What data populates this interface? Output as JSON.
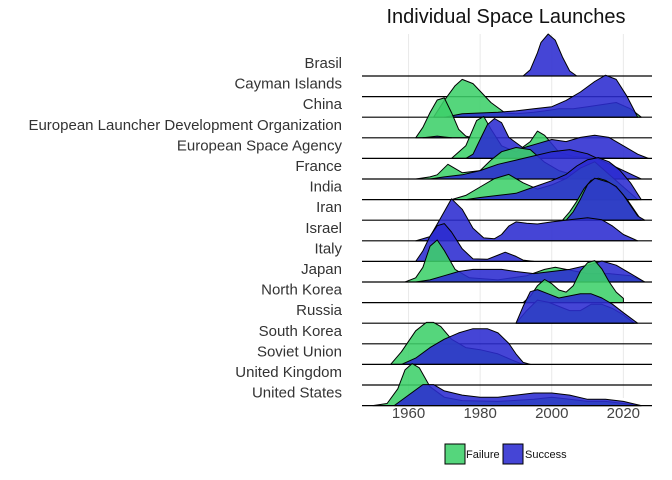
{
  "chart_data": {
    "type": "area",
    "subtype": "ridgeline",
    "title": "Individual Space Launches",
    "xlabel": "",
    "ylabel": "",
    "xlim": [
      1947,
      2028
    ],
    "x_ticks": [
      1960,
      1980,
      2000,
      2020
    ],
    "grid": true,
    "legend": "bottom",
    "categories": [
      "Brasil",
      "Cayman Islands",
      "China",
      "European Launcher Development Organization",
      "European Space Agency",
      "France",
      "India",
      "Iran",
      "Israel",
      "Italy",
      "Japan",
      "North Korea",
      "Russia",
      "South Korea",
      "Soviet Union",
      "United Kingdom",
      "United States"
    ],
    "series": [
      {
        "name": "Failure",
        "color": "#3dd06a",
        "ridges": [
          {
            "category": "China",
            "x": [
              1967,
              1970,
              1973,
              1975,
              1978,
              1983,
              1987,
              1990,
              1995,
              1998,
              2002,
              2006,
              2010,
              2014,
              2018,
              2022,
              2025
            ],
            "y": [
              0.0,
              0.4,
              0.75,
              0.9,
              0.8,
              0.35,
              0.1,
              0.08,
              0.12,
              0.15,
              0.2,
              0.2,
              0.25,
              0.3,
              0.35,
              0.2,
              0.0
            ]
          },
          {
            "category": "European Launcher Development Organization",
            "x": [
              1962,
              1964,
              1966,
              1968,
              1970,
              1972,
              1974,
              1976,
              1978
            ],
            "y": [
              0.0,
              0.25,
              0.6,
              0.9,
              0.95,
              0.6,
              0.2,
              0.04,
              0.0
            ]
          },
          {
            "category": "European Space Agency",
            "x": [
              1972,
              1976,
              1979,
              1981,
              1983,
              1986,
              1990,
              1994,
              1996,
              1998,
              2002,
              2006,
              2010,
              2014,
              2018,
              2022
            ],
            "y": [
              0.0,
              0.3,
              0.9,
              1.0,
              0.7,
              0.3,
              0.15,
              0.4,
              0.65,
              0.55,
              0.15,
              0.05,
              0.02,
              0.02,
              0.01,
              0.0
            ]
          },
          {
            "category": "France",
            "x": [
              1962,
              1966,
              1968,
              1971,
              1975,
              1980,
              1983,
              1986,
              1990,
              1994,
              1998,
              2002,
              2008,
              2014,
              2018,
              2022
            ],
            "y": [
              0.0,
              0.05,
              0.1,
              0.35,
              0.15,
              0.2,
              0.45,
              0.65,
              0.75,
              0.7,
              0.4,
              0.2,
              0.05,
              0.02,
              0.01,
              0.0
            ]
          },
          {
            "category": "India",
            "x": [
              1972,
              1976,
              1980,
              1984,
              1988,
              1992,
              1996,
              2000,
              2004,
              2008,
              2012,
              2016,
              2020,
              2024
            ],
            "y": [
              0.0,
              0.1,
              0.3,
              0.5,
              0.6,
              0.4,
              0.25,
              0.35,
              0.5,
              0.75,
              0.9,
              0.6,
              0.3,
              0.0
            ]
          },
          {
            "category": "Iran",
            "x": [
              2003,
              2005,
              2007,
              2009,
              2011,
              2013,
              2015,
              2017,
              2019,
              2021,
              2023,
              2025
            ],
            "y": [
              0.0,
              0.2,
              0.45,
              0.75,
              0.95,
              1.0,
              0.95,
              0.85,
              0.7,
              0.5,
              0.25,
              0.0
            ]
          },
          {
            "category": "Japan",
            "x": [
              1959,
              1962,
              1964,
              1966,
              1968,
              1970,
              1973,
              1977,
              1985,
              1993,
              1998,
              2001,
              2004,
              2010,
              2016,
              2022,
              2026
            ],
            "y": [
              0.0,
              0.1,
              0.35,
              0.85,
              1.0,
              0.75,
              0.3,
              0.1,
              0.05,
              0.15,
              0.3,
              0.35,
              0.3,
              0.2,
              0.2,
              0.15,
              0.0
            ]
          },
          {
            "category": "North Korea",
            "x": [
              1992,
              1994,
              1996,
              1998,
              2000,
              2002,
              2004,
              2006,
              2008,
              2010,
              2012,
              2014,
              2016,
              2018,
              2020
            ],
            "y": [
              0.0,
              0.15,
              0.4,
              0.55,
              0.45,
              0.3,
              0.25,
              0.4,
              0.75,
              0.95,
              1.0,
              0.8,
              0.5,
              0.25,
              0.1
            ]
          },
          {
            "category": "Russia",
            "x": [
              1990,
              1993,
              1996,
              1999,
              2002,
              2005,
              2008,
              2011,
              2014,
              2017,
              2020,
              2023
            ],
            "y": [
              0.0,
              0.3,
              0.55,
              0.5,
              0.4,
              0.3,
              0.3,
              0.45,
              0.45,
              0.35,
              0.2,
              0.0
            ]
          },
          {
            "category": "Soviet Union",
            "x": [
              1955,
              1958,
              1962,
              1965,
              1967,
              1969,
              1972,
              1976,
              1980,
              1985,
              1989,
              1992
            ],
            "y": [
              0.0,
              0.3,
              0.8,
              1.0,
              1.0,
              0.9,
              0.6,
              0.4,
              0.35,
              0.25,
              0.1,
              0.0
            ]
          },
          {
            "category": "United States",
            "x": [
              1950,
              1954,
              1957,
              1959,
              1961,
              1963,
              1966,
              1970,
              1975,
              1985,
              1995,
              2000,
              2005,
              2010,
              2015,
              2020,
              2025
            ],
            "y": [
              0.0,
              0.05,
              0.4,
              0.85,
              1.0,
              0.9,
              0.45,
              0.2,
              0.12,
              0.1,
              0.15,
              0.2,
              0.15,
              0.1,
              0.1,
              0.05,
              0.0
            ]
          }
        ]
      },
      {
        "name": "Success",
        "color": "#2b2bd0",
        "ridges": [
          {
            "category": "Brasil",
            "x": [
              1992,
              1994,
              1996,
              1997,
              1999,
              2001,
              2003,
              2005,
              2007
            ],
            "y": [
              0.0,
              0.15,
              0.55,
              0.8,
              1.0,
              0.85,
              0.45,
              0.12,
              0.0
            ]
          },
          {
            "category": "China",
            "x": [
              1970,
              1975,
              1980,
              1985,
              1990,
              1995,
              2000,
              2004,
              2008,
              2012,
              2015,
              2018,
              2021,
              2024
            ],
            "y": [
              0.0,
              0.08,
              0.1,
              0.12,
              0.15,
              0.2,
              0.25,
              0.4,
              0.6,
              0.85,
              1.0,
              0.9,
              0.5,
              0.0
            ]
          },
          {
            "category": "European Launcher Development Organization",
            "x": [
              1964,
              1966,
              1968,
              1970,
              1972
            ],
            "y": [
              0.0,
              0.02,
              0.04,
              0.02,
              0.0
            ]
          },
          {
            "category": "European Space Agency",
            "x": [
              1976,
              1978,
              1980,
              1982,
              1984,
              1986,
              1988,
              1992,
              1996,
              2000,
              2004,
              2008,
              2012,
              2016,
              2020,
              2024,
              2027
            ],
            "y": [
              0.0,
              0.1,
              0.45,
              0.8,
              0.95,
              0.85,
              0.5,
              0.25,
              0.35,
              0.45,
              0.4,
              0.5,
              0.55,
              0.5,
              0.3,
              0.1,
              0.0
            ]
          },
          {
            "category": "France",
            "x": [
              1966,
              1970,
              1975,
              1980,
              1985,
              1990,
              1995,
              2000,
              2005,
              2010,
              2015,
              2020,
              2025
            ],
            "y": [
              0.0,
              0.05,
              0.1,
              0.2,
              0.35,
              0.45,
              0.55,
              0.65,
              0.7,
              0.6,
              0.4,
              0.2,
              0.0
            ]
          },
          {
            "category": "India",
            "x": [
              1976,
              1980,
              1985,
              1990,
              1995,
              2000,
              2004,
              2007,
              2010,
              2013,
              2016,
              2019,
              2022,
              2025
            ],
            "y": [
              0.0,
              0.05,
              0.1,
              0.15,
              0.3,
              0.45,
              0.6,
              0.8,
              0.95,
              1.0,
              0.9,
              0.7,
              0.4,
              0.0
            ]
          },
          {
            "category": "Iran",
            "x": [
              2004,
              2006,
              2008,
              2010,
              2012,
              2014,
              2016,
              2018,
              2020,
              2022,
              2024,
              2026
            ],
            "y": [
              0.0,
              0.2,
              0.5,
              0.85,
              1.0,
              0.95,
              0.9,
              0.8,
              0.6,
              0.35,
              0.1,
              0.0
            ]
          },
          {
            "category": "Israel",
            "x": [
              1962,
              1966,
              1969,
              1972,
              1975,
              1978,
              1981,
              1984,
              1986,
              1988,
              1990,
              1993,
              1996,
              2000,
              2005,
              2010,
              2014,
              2017,
              2020,
              2024
            ],
            "y": [
              0.0,
              0.1,
              0.55,
              1.0,
              0.75,
              0.3,
              0.07,
              0.05,
              0.15,
              0.35,
              0.45,
              0.42,
              0.4,
              0.45,
              0.5,
              0.55,
              0.5,
              0.35,
              0.15,
              0.0
            ]
          },
          {
            "category": "Italy",
            "x": [
              1962,
              1964,
              1966,
              1968,
              1970,
              1972,
              1975,
              1978,
              1982,
              1985,
              1987,
              1990,
              1992,
              1995
            ],
            "y": [
              0.0,
              0.25,
              0.6,
              0.85,
              0.9,
              0.7,
              0.3,
              0.06,
              0.05,
              0.15,
              0.22,
              0.12,
              0.03,
              0.0
            ]
          },
          {
            "category": "Japan",
            "x": [
              1962,
              1966,
              1970,
              1974,
              1978,
              1982,
              1986,
              1990,
              1995,
              2000,
              2005,
              2010,
              2014,
              2018,
              2022,
              2026
            ],
            "y": [
              0.0,
              0.05,
              0.15,
              0.25,
              0.3,
              0.3,
              0.3,
              0.25,
              0.2,
              0.25,
              0.3,
              0.4,
              0.5,
              0.4,
              0.2,
              0.0
            ]
          },
          {
            "category": "Russia",
            "x": [
              1990,
              1992,
              1994,
              1996,
              1999,
              2002,
              2005,
              2008,
              2011,
              2014,
              2017,
              2020,
              2024
            ],
            "y": [
              0.0,
              0.4,
              0.75,
              0.8,
              0.7,
              0.6,
              0.65,
              0.7,
              0.7,
              0.6,
              0.45,
              0.25,
              0.0
            ]
          },
          {
            "category": "Soviet Union",
            "x": [
              1958,
              1962,
              1966,
              1970,
              1974,
              1978,
              1982,
              1985,
              1988,
              1990,
              1992,
              1994
            ],
            "y": [
              0.0,
              0.15,
              0.4,
              0.6,
              0.75,
              0.85,
              0.85,
              0.75,
              0.5,
              0.25,
              0.05,
              0.0
            ]
          },
          {
            "category": "United States",
            "x": [
              1956,
              1960,
              1964,
              1967,
              1970,
              1975,
              1980,
              1985,
              1990,
              1995,
              2000,
              2005,
              2010,
              2015,
              2020,
              2025
            ],
            "y": [
              0.0,
              0.25,
              0.5,
              0.5,
              0.35,
              0.25,
              0.2,
              0.2,
              0.25,
              0.3,
              0.3,
              0.25,
              0.15,
              0.15,
              0.1,
              0.0
            ]
          }
        ]
      }
    ]
  }
}
